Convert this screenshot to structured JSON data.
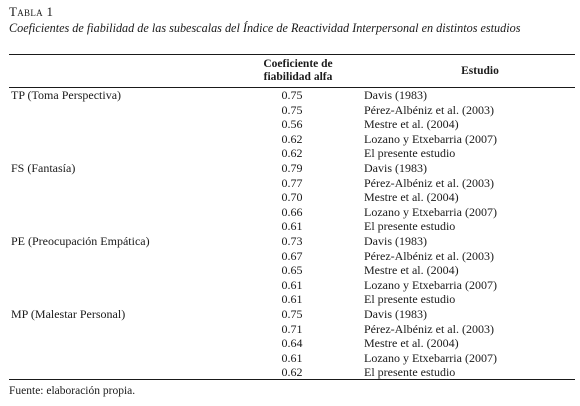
{
  "table": {
    "number": "Tabla 1",
    "caption": "Coeficientes de fiabilidad de las subescalas del Índice de Reactividad Interpersonal en distintos estudios",
    "headers": {
      "coefficient_line1": "Coeficiente de",
      "coefficient_line2": "fiabilidad alfa",
      "study": "Estudio"
    },
    "groups": [
      {
        "scale": "TP (Toma Perspectiva)",
        "rows": [
          {
            "value": "0.75",
            "study": "Davis (1983)"
          },
          {
            "value": "0.75",
            "study": "Pérez-Albéniz et al. (2003)"
          },
          {
            "value": "0.56",
            "study": "Mestre et al. (2004)"
          },
          {
            "value": "0.62",
            "study": "Lozano y Etxebarria (2007)"
          },
          {
            "value": "0.62",
            "study": "El presente estudio"
          }
        ]
      },
      {
        "scale": "FS (Fantasía)",
        "rows": [
          {
            "value": "0.79",
            "study": "Davis (1983)"
          },
          {
            "value": "0.77",
            "study": "Pérez-Albéniz et al. (2003)"
          },
          {
            "value": "0.70",
            "study": "Mestre et al. (2004)"
          },
          {
            "value": "0.66",
            "study": "Lozano y Etxebarria (2007)"
          },
          {
            "value": "0.61",
            "study": "El presente estudio"
          }
        ]
      },
      {
        "scale": "PE (Preocupación Empática)",
        "rows": [
          {
            "value": "0.73",
            "study": "Davis (1983)"
          },
          {
            "value": "0.67",
            "study": "Pérez-Albéniz et al. (2003)"
          },
          {
            "value": "0.65",
            "study": "Mestre et al. (2004)"
          },
          {
            "value": "0.61",
            "study": "Lozano y Etxebarria (2007)"
          },
          {
            "value": "0.61",
            "study": "El presente estudio"
          }
        ]
      },
      {
        "scale": "MP (Malestar Personal)",
        "rows": [
          {
            "value": "0.75",
            "study": "Davis (1983)"
          },
          {
            "value": "0.71",
            "study": "Pérez-Albéniz et al. (2003)"
          },
          {
            "value": "0.64",
            "study": "Mestre et al. (2004)"
          },
          {
            "value": "0.61",
            "study": "Lozano y Etxebarria (2007)"
          },
          {
            "value": "0.62",
            "study": "El presente estudio"
          }
        ]
      }
    ],
    "footnote": "Fuente: elaboración propia."
  }
}
